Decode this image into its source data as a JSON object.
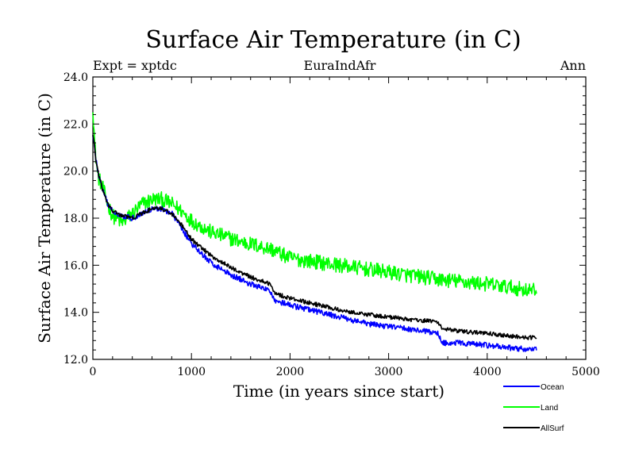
{
  "chart_data": {
    "type": "line",
    "title": "Surface Air Temperature (in C)",
    "subtitle_left": "Expt = xptdc",
    "subtitle_center": "EuraIndAfr",
    "subtitle_right": "Ann",
    "xlabel": "Time (in years since start)",
    "ylabel": "Surface Air Temperature (in C)",
    "xlim": [
      0,
      5000
    ],
    "ylim": [
      12.0,
      24.0
    ],
    "x_ticks": [
      0,
      1000,
      2000,
      3000,
      4000,
      5000
    ],
    "x_tick_labels": [
      "0",
      "1000",
      "2000",
      "3000",
      "4000",
      "5000"
    ],
    "y_ticks": [
      12,
      14,
      16,
      18,
      20,
      22,
      24
    ],
    "y_tick_labels": [
      "12.0",
      "14.0",
      "16.0",
      "18.0",
      "20.0",
      "22.0",
      "24.0"
    ],
    "grid": false,
    "legend_position": "bottom-right",
    "series": [
      {
        "name": "Ocean",
        "color": "#0000ff",
        "noise": 0.12,
        "x": [
          0,
          30,
          60,
          100,
          150,
          200,
          250,
          300,
          400,
          500,
          600,
          700,
          800,
          900,
          1000,
          1200,
          1400,
          1600,
          1800,
          1850,
          2000,
          2200,
          2500,
          2800,
          3000,
          3200,
          3500,
          3550,
          3700,
          4000,
          4200,
          4500
        ],
        "values": [
          21.6,
          20.5,
          19.8,
          19.2,
          18.6,
          18.3,
          18.2,
          18.1,
          18.0,
          18.2,
          18.4,
          18.4,
          18.2,
          17.6,
          16.9,
          16.1,
          15.6,
          15.2,
          14.9,
          14.5,
          14.3,
          14.1,
          13.8,
          13.5,
          13.4,
          13.3,
          13.1,
          12.7,
          12.7,
          12.6,
          12.5,
          12.4
        ]
      },
      {
        "name": "Land",
        "color": "#00ff00",
        "noise": 0.32,
        "x": [
          0,
          20,
          50,
          100,
          150,
          200,
          300,
          400,
          500,
          600,
          700,
          800,
          900,
          1000,
          1200,
          1500,
          1800,
          2000,
          2500,
          3000,
          3500,
          4000,
          4500
        ],
        "values": [
          22.8,
          21.0,
          19.8,
          19.3,
          18.6,
          18.1,
          17.8,
          18.2,
          18.6,
          18.8,
          18.8,
          18.6,
          18.3,
          17.9,
          17.4,
          17.0,
          16.7,
          16.3,
          16.0,
          15.7,
          15.4,
          15.2,
          14.9
        ]
      },
      {
        "name": "AllSurf",
        "color": "#000000",
        "noise": 0.09,
        "x": [
          0,
          30,
          60,
          100,
          150,
          200,
          250,
          300,
          400,
          500,
          600,
          700,
          800,
          900,
          1000,
          1200,
          1400,
          1600,
          1800,
          1850,
          2000,
          2200,
          2500,
          2800,
          3000,
          3200,
          3500,
          3550,
          3700,
          4000,
          4200,
          4500
        ],
        "values": [
          21.6,
          20.5,
          19.8,
          19.2,
          18.6,
          18.3,
          18.2,
          18.1,
          18.0,
          18.2,
          18.4,
          18.4,
          18.2,
          17.7,
          17.1,
          16.4,
          15.9,
          15.5,
          15.2,
          14.8,
          14.6,
          14.4,
          14.1,
          13.9,
          13.8,
          13.7,
          13.6,
          13.3,
          13.2,
          13.1,
          13.0,
          12.9
        ]
      }
    ]
  }
}
